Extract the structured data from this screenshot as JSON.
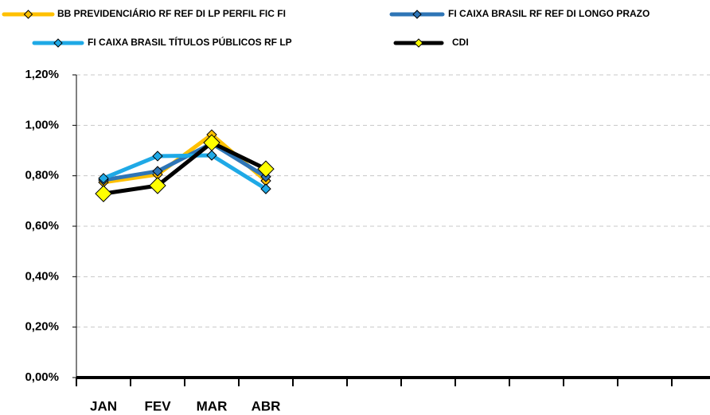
{
  "chart_data": {
    "type": "line",
    "categories": [
      "JAN",
      "FEV",
      "MAR",
      "ABR",
      null,
      null,
      null,
      null,
      null,
      null,
      null,
      null
    ],
    "series": [
      {
        "name": "BB PREVIDENCIÁRIO RF REF DI LP PERFIL FIC FI",
        "color": "#ffc000",
        "values": [
          0.774,
          0.805,
          0.963,
          0.78,
          null,
          null,
          null,
          null,
          null,
          null,
          null,
          null
        ]
      },
      {
        "name": "FI CAIXA BRASIL RF REF DI LONGO PRAZO",
        "color": "#2e75b6",
        "values": [
          0.783,
          0.818,
          0.928,
          0.796,
          null,
          null,
          null,
          null,
          null,
          null,
          null,
          null
        ]
      },
      {
        "name": "FI CAIXA BRASIL TÍTULOS PÚBLICOS RF LP",
        "color": "#1fa9e6",
        "values": [
          0.79,
          0.878,
          0.881,
          0.748,
          null,
          null,
          null,
          null,
          null,
          null,
          null,
          null
        ]
      },
      {
        "name": "CDI",
        "color": "#000000",
        "marker_color": "#ffff00",
        "values": [
          0.729,
          0.761,
          0.931,
          0.827,
          null,
          null,
          null,
          null,
          null,
          null,
          null,
          null
        ]
      }
    ],
    "ylim": [
      0,
      1.2
    ],
    "yticks": [
      {
        "value": 0,
        "label": "0,00%"
      },
      {
        "value": 0.2,
        "label": "0,20%"
      },
      {
        "value": 0.4,
        "label": "0,40%"
      },
      {
        "value": 0.6,
        "label": "0,60%"
      },
      {
        "value": 0.8,
        "label": "0,80%"
      },
      {
        "value": 1.0,
        "label": "1,00%"
      },
      {
        "value": 1.2,
        "label": "1,20%"
      }
    ],
    "grid": true
  }
}
